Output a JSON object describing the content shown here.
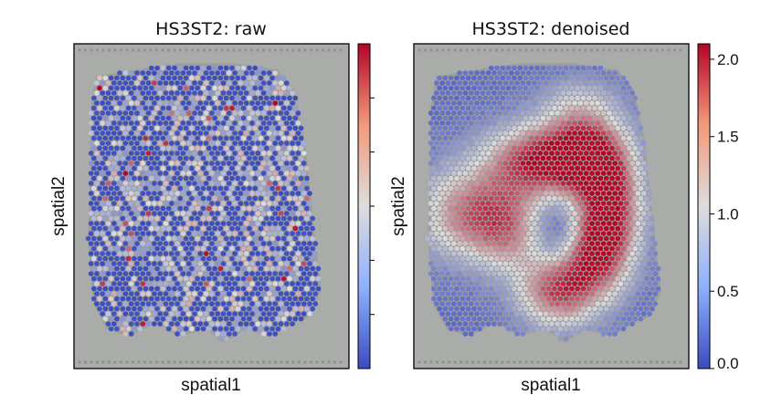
{
  "figure": {
    "panels": [
      {
        "title": "HS3ST2: raw",
        "xlabel": "spatial1",
        "ylabel": "spatial2",
        "colorbar_tick_labels": []
      },
      {
        "title": "HS3ST2: denoised",
        "xlabel": "spatial1",
        "ylabel": "spatial2",
        "colorbar_tick_labels": [
          "0.0",
          "0.5",
          "1.0",
          "1.5",
          "2.0"
        ]
      }
    ]
  },
  "chart_data": [
    {
      "type": "heatmap",
      "title": "HS3ST2: raw",
      "xlabel": "spatial1",
      "ylabel": "spatial2",
      "colormap": "coolwarm",
      "colormap_colors": [
        "#3b4cc0",
        "#dddddd",
        "#b40426"
      ],
      "background_color": "#a9aca8",
      "color_range": [
        0,
        2.1
      ],
      "colorbar_tick_values": [
        0.35,
        0.7,
        1.05,
        1.4,
        1.75
      ],
      "points_description": "spots mostly at low expression (blue); sparse spots at medium and high values",
      "grid": false
    },
    {
      "type": "heatmap",
      "title": "HS3ST2: denoised",
      "xlabel": "spatial1",
      "ylabel": "spatial2",
      "colormap": "coolwarm",
      "colormap_colors": [
        "#3b4cc0",
        "#dddddd",
        "#b40426"
      ],
      "background_color": "#a9aca8",
      "color_range": [
        0,
        2.1
      ],
      "colorbar_ticks": [
        0.0,
        0.5,
        1.0,
        1.5,
        2.0
      ],
      "colorbar_tick_labels": [
        "0.0",
        "0.5",
        "1.0",
        "1.5",
        "2.0"
      ],
      "points_description": "smooth expression: high (red) C-shaped band through the centre and left, low (blue) around edges",
      "grid": false
    }
  ]
}
